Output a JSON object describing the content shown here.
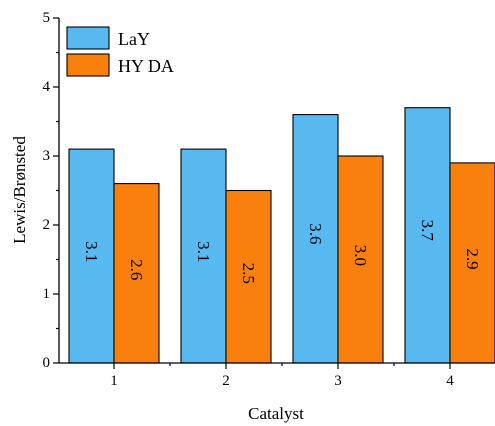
{
  "chart_data": {
    "type": "bar",
    "categories": [
      "1",
      "2",
      "3",
      "4"
    ],
    "series": [
      {
        "name": "LaY",
        "values": [
          3.1,
          3.1,
          3.6,
          3.7
        ],
        "color": "#58B9F1",
        "labels": [
          "3.1",
          "3.1",
          "3.6",
          "3.7"
        ]
      },
      {
        "name": "HY DA",
        "values": [
          2.6,
          2.5,
          3.0,
          2.9
        ],
        "color": "#F9800C",
        "labels": [
          "2.6",
          "2.5",
          "3.0",
          "2.9"
        ]
      }
    ],
    "xlabel": "Catalyst",
    "ylabel": "Lewis/Brønsted",
    "ylim": [
      0,
      5
    ],
    "yticks": [
      "0",
      "1",
      "2",
      "3",
      "4",
      "5"
    ],
    "grid": false,
    "legend_position": "top-left"
  }
}
